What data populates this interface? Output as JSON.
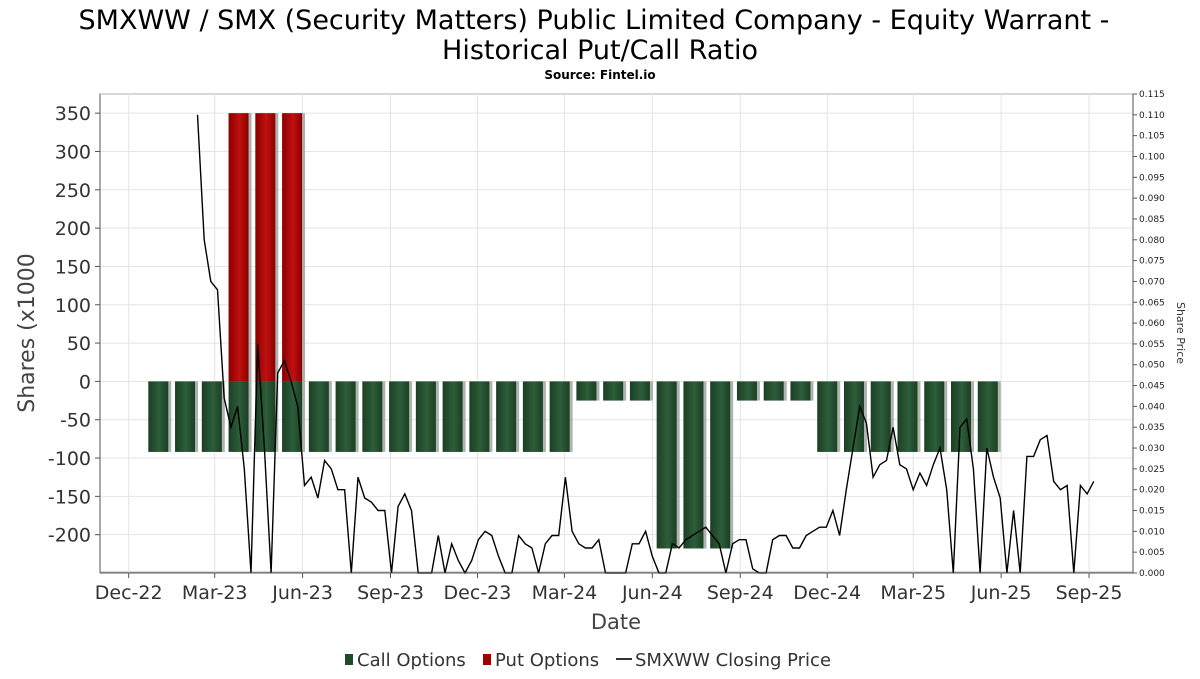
{
  "chart_data": {
    "type": "bar",
    "title": "SMXWW / SMX (Security Matters) Public Limited Company - Equity Warrant - Historical Put/Call Ratio",
    "title_lines": [
      "SMXWW / SMX (Security Matters) Public Limited Company - Equity Warrant -",
      "Historical Put/Call Ratio"
    ],
    "subtitle": "Source: Fintel.io",
    "xlabel": "Date",
    "ylabel": "Shares (x1000",
    "y2label": "Share Price",
    "x_range": [
      "2022-11-01",
      "2025-10-17"
    ],
    "ylim": [
      -250,
      375
    ],
    "y_ticks": [
      350,
      300,
      250,
      200,
      150,
      100,
      50,
      0,
      -50,
      -100,
      -150,
      -200
    ],
    "y2lim": [
      0,
      0.115
    ],
    "y2_ticks": [
      "0.115",
      "0.110",
      "0.105",
      "0.100",
      "0.095",
      "0.090",
      "0.085",
      "0.080",
      "0.075",
      "0.070",
      "0.065",
      "0.060",
      "0.055",
      "0.050",
      "0.045",
      "0.040",
      "0.035",
      "0.030",
      "0.025",
      "0.020",
      "0.015",
      "0.010",
      "0.005",
      "0.000"
    ],
    "x_ticks": [
      {
        "label": "Dec-22",
        "date": "2022-12-01"
      },
      {
        "label": "Mar-23",
        "date": "2023-03-01"
      },
      {
        "label": "Jun-23",
        "date": "2023-06-01"
      },
      {
        "label": "Sep-23",
        "date": "2023-09-01"
      },
      {
        "label": "Dec-23",
        "date": "2023-12-01"
      },
      {
        "label": "Mar-24",
        "date": "2024-03-01"
      },
      {
        "label": "Jun-24",
        "date": "2024-06-01"
      },
      {
        "label": "Sep-24",
        "date": "2024-09-01"
      },
      {
        "label": "Dec-24",
        "date": "2024-12-01"
      },
      {
        "label": "Mar-25",
        "date": "2025-03-01"
      },
      {
        "label": "Jun-25",
        "date": "2025-06-01"
      },
      {
        "label": "Sep-25",
        "date": "2025-09-01"
      }
    ],
    "grid": true,
    "legend_position": "bottom",
    "series": [
      {
        "name": "Call Options",
        "color": "#1f4a2a",
        "x": [
          "2023-01-01",
          "2023-01-29",
          "2023-02-26",
          "2023-03-26",
          "2023-04-23",
          "2023-05-21",
          "2023-06-18",
          "2023-07-16",
          "2023-08-13",
          "2023-09-10",
          "2023-10-08",
          "2023-11-05",
          "2023-12-03",
          "2023-12-31",
          "2024-01-28",
          "2024-02-25",
          "2024-03-24",
          "2024-04-21",
          "2024-05-19",
          "2024-06-16",
          "2024-07-14",
          "2024-08-11",
          "2024-09-08",
          "2024-10-06",
          "2024-11-03",
          "2024-12-01",
          "2024-12-29",
          "2025-01-26",
          "2025-02-23",
          "2025-03-23",
          "2025-04-20",
          "2025-05-18"
        ],
        "values": [
          -92,
          -92,
          -92,
          -92,
          -92,
          -92,
          -92,
          -92,
          -92,
          -92,
          -92,
          -92,
          -92,
          -92,
          -92,
          -92,
          -25,
          -25,
          -25,
          -218,
          -218,
          -218,
          -25,
          -25,
          -25,
          -92,
          -92,
          -92,
          -92,
          -92,
          -92,
          -92
        ]
      },
      {
        "name": "Put Options",
        "color": "#a00000",
        "x": [
          "2023-03-26",
          "2023-04-23",
          "2023-05-21"
        ],
        "values": [
          350,
          350,
          350
        ]
      },
      {
        "name": "SMXWW Closing Price",
        "color": "#000000",
        "axis": "right",
        "x": [
          "2023-02-11",
          "2023-02-18",
          "2023-02-25",
          "2023-03-04",
          "2023-03-11",
          "2023-03-18",
          "2023-03-25",
          "2023-04-01",
          "2023-04-08",
          "2023-04-15",
          "2023-04-22",
          "2023-04-29",
          "2023-05-06",
          "2023-05-13",
          "2023-05-20",
          "2023-05-27",
          "2023-06-03",
          "2023-06-10",
          "2023-06-17",
          "2023-06-24",
          "2023-07-01",
          "2023-07-08",
          "2023-07-15",
          "2023-07-22",
          "2023-07-29",
          "2023-08-05",
          "2023-08-12",
          "2023-08-19",
          "2023-08-26",
          "2023-09-02",
          "2023-09-09",
          "2023-09-16",
          "2023-09-23",
          "2023-09-30",
          "2023-10-07",
          "2023-10-14",
          "2023-10-21",
          "2023-10-28",
          "2023-11-04",
          "2023-11-11",
          "2023-11-18",
          "2023-11-25",
          "2023-12-02",
          "2023-12-09",
          "2023-12-16",
          "2023-12-23",
          "2023-12-30",
          "2024-01-06",
          "2024-01-13",
          "2024-01-20",
          "2024-01-27",
          "2024-02-03",
          "2024-02-10",
          "2024-02-17",
          "2024-02-24",
          "2024-03-02",
          "2024-03-09",
          "2024-03-16",
          "2024-03-23",
          "2024-03-30",
          "2024-04-06",
          "2024-04-13",
          "2024-04-20",
          "2024-04-27",
          "2024-05-04",
          "2024-05-11",
          "2024-05-18",
          "2024-05-25",
          "2024-06-01",
          "2024-06-08",
          "2024-06-15",
          "2024-06-22",
          "2024-06-29",
          "2024-07-06",
          "2024-07-13",
          "2024-07-20",
          "2024-07-27",
          "2024-08-03",
          "2024-08-10",
          "2024-08-17",
          "2024-08-24",
          "2024-08-31",
          "2024-09-07",
          "2024-09-14",
          "2024-09-21",
          "2024-09-28",
          "2024-10-05",
          "2024-10-12",
          "2024-10-19",
          "2024-10-26",
          "2024-11-02",
          "2024-11-09",
          "2024-11-16",
          "2024-11-23",
          "2024-11-30",
          "2024-12-07",
          "2024-12-14",
          "2024-12-21",
          "2024-12-28",
          "2025-01-04",
          "2025-01-11",
          "2025-01-18",
          "2025-01-25",
          "2025-02-01",
          "2025-02-08",
          "2025-02-15",
          "2025-02-22",
          "2025-03-01",
          "2025-03-08",
          "2025-03-15",
          "2025-03-22",
          "2025-03-29",
          "2025-04-05",
          "2025-04-12",
          "2025-04-19",
          "2025-04-26",
          "2025-05-03",
          "2025-05-10",
          "2025-05-17",
          "2025-05-24",
          "2025-05-31",
          "2025-06-07",
          "2025-06-14",
          "2025-06-21",
          "2025-06-28",
          "2025-07-05",
          "2025-07-12",
          "2025-07-19",
          "2025-07-26",
          "2025-08-02",
          "2025-08-09",
          "2025-08-16",
          "2025-08-23",
          "2025-08-30",
          "2025-09-06"
        ],
        "values": [
          0.11,
          0.08,
          0.07,
          0.068,
          0.042,
          0.035,
          0.04,
          0.025,
          0.0,
          0.055,
          0.03,
          0.0,
          0.048,
          0.051,
          0.046,
          0.04,
          0.021,
          0.023,
          0.018,
          0.027,
          0.025,
          0.02,
          0.02,
          0.0,
          0.023,
          0.018,
          0.017,
          0.015,
          0.015,
          0.0,
          0.016,
          0.019,
          0.015,
          0.0,
          0.0,
          0.0,
          0.009,
          0.0,
          0.007,
          0.003,
          0.0,
          0.003,
          0.008,
          0.01,
          0.009,
          0.004,
          0.0,
          0.0,
          0.009,
          0.007,
          0.006,
          0.0,
          0.007,
          0.009,
          0.009,
          0.023,
          0.01,
          0.007,
          0.006,
          0.006,
          0.008,
          0.0,
          0.0,
          0.0,
          0.0,
          0.007,
          0.007,
          0.01,
          0.004,
          0.0,
          0.0,
          0.007,
          0.006,
          0.008,
          0.009,
          0.01,
          0.011,
          0.009,
          0.007,
          0.0,
          0.007,
          0.008,
          0.008,
          0.001,
          0.0,
          0.0,
          0.008,
          0.009,
          0.009,
          0.006,
          0.006,
          0.009,
          0.01,
          0.011,
          0.011,
          0.015,
          0.009,
          0.02,
          0.03,
          0.04,
          0.036,
          0.023,
          0.026,
          0.027,
          0.035,
          0.026,
          0.025,
          0.02,
          0.024,
          0.021,
          0.026,
          0.03,
          0.02,
          0.0,
          0.035,
          0.037,
          0.025,
          0.0,
          0.03,
          0.023,
          0.018,
          0.0,
          0.015,
          0.0,
          0.028,
          0.028,
          0.032,
          0.033,
          0.022,
          0.02,
          0.021,
          0.0,
          0.021,
          0.019,
          0.022
        ]
      }
    ]
  }
}
